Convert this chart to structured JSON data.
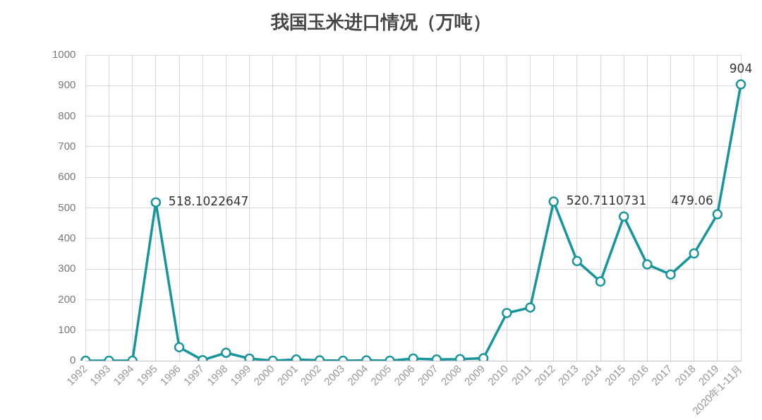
{
  "chart_data": {
    "type": "line",
    "title": "我国玉米进口情况（万吨）",
    "categories": [
      "1992",
      "1993",
      "1994",
      "1995",
      "1996",
      "1997",
      "1998",
      "1999",
      "2000",
      "2001",
      "2002",
      "2003",
      "2004",
      "2005",
      "2006",
      "2007",
      "2008",
      "2009",
      "2010",
      "2011",
      "2012",
      "2013",
      "2014",
      "2015",
      "2016",
      "2017",
      "2018",
      "2019",
      "2020年1-11月"
    ],
    "series": [
      {
        "color": "#17959a",
        "values": [
          0,
          0,
          0,
          518.1022647,
          44,
          2,
          26,
          7,
          0,
          4,
          1,
          0,
          1,
          0,
          7,
          4,
          5,
          8,
          156,
          174,
          520.7110731,
          326,
          259,
          472,
          315,
          282,
          351,
          479.06,
          904
        ],
        "value_labels": [
          null,
          null,
          null,
          "518.1022647",
          null,
          null,
          null,
          null,
          null,
          null,
          null,
          null,
          null,
          null,
          null,
          null,
          null,
          null,
          null,
          null,
          "520.7110731",
          null,
          null,
          null,
          null,
          null,
          null,
          "479.06",
          "904"
        ]
      }
    ],
    "ylim": [
      0,
      1000
    ],
    "yticks": [
      0,
      100,
      200,
      300,
      400,
      500,
      600,
      700,
      800,
      900,
      1000
    ],
    "grid": true,
    "legend": false,
    "marker": "circle",
    "line_style": "solid"
  }
}
